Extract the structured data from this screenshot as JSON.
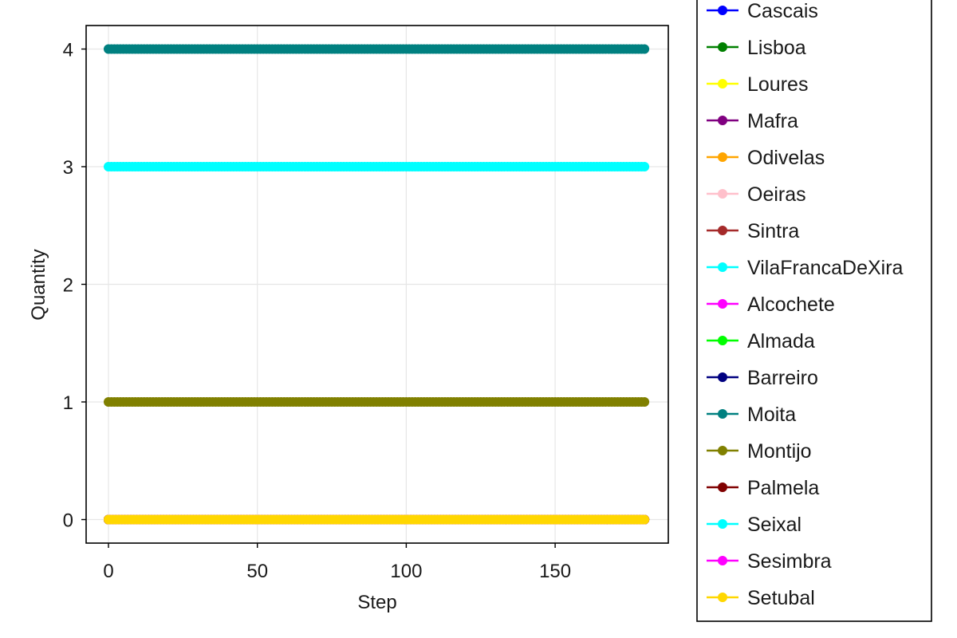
{
  "chart_data": {
    "type": "scatter",
    "title": "",
    "xlabel": "Step",
    "ylabel": "Quantity",
    "xlim": [
      -7.5,
      188
    ],
    "ylim": [
      -0.2,
      4.2
    ],
    "xticks": [
      0,
      50,
      100,
      150
    ],
    "yticks": [
      0,
      1,
      2,
      3,
      4
    ],
    "x_range": [
      0,
      180
    ],
    "grid": true,
    "legend_position": "right",
    "series": [
      {
        "name": "Cascais",
        "color": "#0000ff",
        "value": 0
      },
      {
        "name": "Lisboa",
        "color": "#008000",
        "value": 0
      },
      {
        "name": "Loures",
        "color": "#ffff00",
        "value": 0
      },
      {
        "name": "Mafra",
        "color": "#800080",
        "value": 0
      },
      {
        "name": "Odivelas",
        "color": "#ffa500",
        "value": 0
      },
      {
        "name": "Oeiras",
        "color": "#ffc0cb",
        "value": 0
      },
      {
        "name": "Sintra",
        "color": "#a52a2a",
        "value": 0
      },
      {
        "name": "VilaFrancaDeXira",
        "color": "#00ffff",
        "value": 0
      },
      {
        "name": "Alcochete",
        "color": "#ff00ff",
        "value": 0
      },
      {
        "name": "Almada",
        "color": "#00ff00",
        "value": 0
      },
      {
        "name": "Barreiro",
        "color": "#000080",
        "value": 0
      },
      {
        "name": "Moita",
        "color": "#008080",
        "value": 4
      },
      {
        "name": "Montijo",
        "color": "#808000",
        "value": 1
      },
      {
        "name": "Palmela",
        "color": "#800000",
        "value": 0
      },
      {
        "name": "Seixal",
        "color": "#00ffff",
        "value": 3
      },
      {
        "name": "Sesimbra",
        "color": "#ff00ff",
        "value": 0
      },
      {
        "name": "Setubal",
        "color": "#ffd700",
        "value": 0
      }
    ]
  }
}
